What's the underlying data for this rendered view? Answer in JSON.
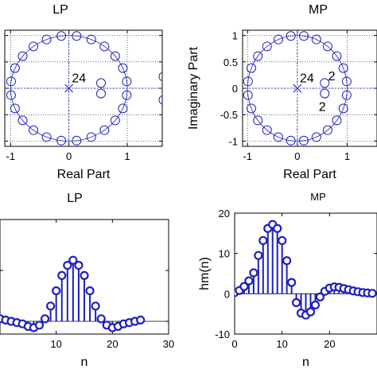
{
  "colors": {
    "marker": "#1f1fbf",
    "grid": "#000000",
    "axis": "#000000"
  },
  "chart_data": [
    {
      "type": "scatter",
      "title": "LP",
      "xlabel": "Real Part",
      "ylabel": "",
      "xlim": [
        -1.1,
        1.6
      ],
      "ylim": [
        -1.1,
        1.1
      ],
      "xticks": [
        -1,
        0,
        1
      ],
      "xtick_labels": [
        "-1",
        "0",
        "1"
      ],
      "yticks": [
        -1,
        -0.5,
        0,
        0.5,
        1
      ],
      "grid": true,
      "unit_circle": true,
      "zeros": [
        [
          0.1309,
          0.9914
        ],
        [
          0.3827,
          0.9239
        ],
        [
          0.6088,
          0.7934
        ],
        [
          0.7934,
          0.6088
        ],
        [
          0.9239,
          0.3827
        ],
        [
          0.9914,
          0.1309
        ],
        [
          0.9914,
          -0.1309
        ],
        [
          0.9239,
          -0.3827
        ],
        [
          0.7934,
          -0.6088
        ],
        [
          0.6088,
          -0.7934
        ],
        [
          0.3827,
          -0.9239
        ],
        [
          0.1309,
          -0.9914
        ],
        [
          -0.1309,
          0.9914
        ],
        [
          -0.3827,
          0.9239
        ],
        [
          -0.6088,
          0.7934
        ],
        [
          -0.7934,
          0.6088
        ],
        [
          -0.9239,
          0.3827
        ],
        [
          -0.9914,
          0.1309
        ],
        [
          -0.9914,
          -0.1309
        ],
        [
          -0.9239,
          -0.3827
        ],
        [
          -0.7934,
          -0.6088
        ],
        [
          -0.6088,
          -0.7934
        ],
        [
          -0.3827,
          -0.9239
        ],
        [
          -0.1309,
          -0.9914
        ],
        [
          0.55,
          0.1
        ],
        [
          0.55,
          -0.1
        ],
        [
          1.62,
          0.22
        ],
        [
          1.62,
          -0.22
        ]
      ],
      "poles": [
        [
          0,
          0
        ]
      ],
      "annotations": [
        {
          "text": "24",
          "x": 0.05,
          "y": 0.2
        }
      ]
    },
    {
      "type": "scatter",
      "title": "MP",
      "xlabel": "Real Part",
      "ylabel": "Imaginary Part",
      "xlim": [
        -1.1,
        1.6
      ],
      "ylim": [
        -1.1,
        1.1
      ],
      "xticks": [
        -1,
        0,
        1
      ],
      "xtick_labels": [
        "-1",
        "0",
        "1"
      ],
      "yticks": [
        -1,
        -0.5,
        0,
        0.5,
        1
      ],
      "ytick_labels": [
        "-1",
        "-0.5",
        "0",
        "0.5",
        "1"
      ],
      "grid": true,
      "unit_circle": true,
      "zeros": [
        [
          0.1309,
          0.9914
        ],
        [
          0.3827,
          0.9239
        ],
        [
          0.6088,
          0.7934
        ],
        [
          0.7934,
          0.6088
        ],
        [
          0.9239,
          0.3827
        ],
        [
          0.9914,
          0.1309
        ],
        [
          0.9914,
          -0.1309
        ],
        [
          0.9239,
          -0.3827
        ],
        [
          0.7934,
          -0.6088
        ],
        [
          0.6088,
          -0.7934
        ],
        [
          0.3827,
          -0.9239
        ],
        [
          0.1309,
          -0.9914
        ],
        [
          -0.1309,
          0.9914
        ],
        [
          -0.3827,
          0.9239
        ],
        [
          -0.6088,
          0.7934
        ],
        [
          -0.7934,
          0.6088
        ],
        [
          -0.9239,
          0.3827
        ],
        [
          -0.9914,
          0.1309
        ],
        [
          -0.9914,
          -0.1309
        ],
        [
          -0.9239,
          -0.3827
        ],
        [
          -0.7934,
          -0.6088
        ],
        [
          -0.6088,
          -0.7934
        ],
        [
          -0.3827,
          -0.9239
        ],
        [
          -0.1309,
          -0.9914
        ],
        [
          0.55,
          0.1
        ],
        [
          0.55,
          -0.1
        ]
      ],
      "poles": [
        [
          0,
          0
        ]
      ],
      "annotations": [
        {
          "text": "24",
          "x": 0.05,
          "y": 0.2
        },
        {
          "text": "2",
          "x": 0.62,
          "y": 0.24
        },
        {
          "text": "2",
          "x": 0.43,
          "y": -0.34
        }
      ]
    },
    {
      "type": "stem",
      "title": "LP",
      "xlabel": "n",
      "ylabel": "",
      "xlim": [
        0,
        30
      ],
      "ylim": [
        -0.05,
        0.4
      ],
      "xticks": [
        10,
        20,
        30
      ],
      "xtick_labels": [
        "10",
        "20",
        "30"
      ],
      "yticks": [
        0,
        0.2
      ],
      "grid": false,
      "x": [
        0,
        1,
        2,
        3,
        4,
        5,
        6,
        7,
        8,
        9,
        10,
        11,
        12,
        13,
        14,
        15,
        16,
        17,
        18,
        19,
        20,
        21,
        22,
        23,
        24,
        25
      ],
      "y": [
        0.01,
        0.005,
        0.0,
        -0.005,
        -0.01,
        -0.02,
        -0.025,
        -0.015,
        0.01,
        0.06,
        0.12,
        0.18,
        0.22,
        0.24,
        0.22,
        0.18,
        0.12,
        0.06,
        0.01,
        -0.015,
        -0.025,
        -0.02,
        -0.01,
        -0.005,
        0.0,
        0.005
      ]
    },
    {
      "type": "stem",
      "title": "MP",
      "xlabel": "n",
      "ylabel": "hm(n)",
      "xlim": [
        0,
        30
      ],
      "ylim": [
        -10,
        20
      ],
      "xticks": [
        0,
        10,
        20
      ],
      "xtick_labels": [
        "0",
        "10",
        "20"
      ],
      "yticks": [
        -10,
        0,
        10,
        20
      ],
      "ytick_labels": [
        "-10",
        "0",
        "10",
        "20"
      ],
      "grid": false,
      "x": [
        0,
        1,
        2,
        3,
        4,
        5,
        6,
        7,
        8,
        9,
        10,
        11,
        12,
        13,
        14,
        15,
        16,
        17,
        18,
        19,
        20,
        21,
        22,
        23,
        24,
        25,
        26,
        27,
        28,
        29
      ],
      "y": [
        0.3,
        0.8,
        1.8,
        3.2,
        5.2,
        9.5,
        13.2,
        16.2,
        17.2,
        16.2,
        13.2,
        8.2,
        2.8,
        -2.2,
        -4.8,
        -5.3,
        -4.5,
        -2.8,
        -0.8,
        0.6,
        1.4,
        1.7,
        1.6,
        1.3,
        1.0,
        0.7,
        0.5,
        0.3,
        0.2,
        0.1
      ]
    }
  ]
}
